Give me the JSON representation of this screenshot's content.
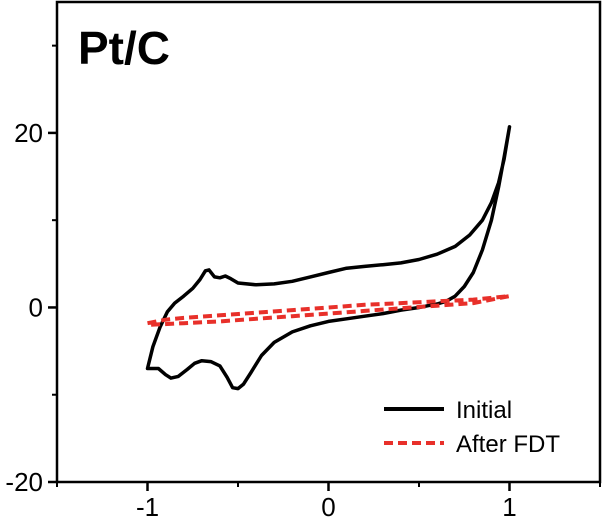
{
  "chart_data": {
    "type": "line",
    "title": "",
    "panel_label": "Pt/C",
    "xlabel": "",
    "ylabel": "",
    "xlim": [
      -1.5,
      1.5
    ],
    "ylim": [
      -20,
      35
    ],
    "xticks": [
      -1,
      0,
      1
    ],
    "xtick_labels": [
      "-1",
      "0",
      "1"
    ],
    "yticks": [
      20,
      0,
      -20
    ],
    "ytick_labels": [
      "20",
      "0",
      "-20"
    ],
    "grid": false,
    "legend_position": "bottom-right",
    "series": [
      {
        "name": "Initial",
        "color": "#000000",
        "dash": "solid",
        "points": [
          [
            -1.0,
            -7.0
          ],
          [
            -0.97,
            -4.5
          ],
          [
            -0.93,
            -2.2
          ],
          [
            -0.89,
            -0.5
          ],
          [
            -0.85,
            0.5
          ],
          [
            -0.8,
            1.3
          ],
          [
            -0.75,
            2.2
          ],
          [
            -0.71,
            3.2
          ],
          [
            -0.68,
            4.2
          ],
          [
            -0.66,
            4.3
          ],
          [
            -0.63,
            3.5
          ],
          [
            -0.6,
            3.4
          ],
          [
            -0.57,
            3.6
          ],
          [
            -0.54,
            3.3
          ],
          [
            -0.5,
            2.8
          ],
          [
            -0.4,
            2.6
          ],
          [
            -0.3,
            2.7
          ],
          [
            -0.2,
            3.0
          ],
          [
            -0.1,
            3.5
          ],
          [
            0.0,
            4.0
          ],
          [
            0.1,
            4.5
          ],
          [
            0.2,
            4.7
          ],
          [
            0.3,
            4.9
          ],
          [
            0.4,
            5.1
          ],
          [
            0.5,
            5.5
          ],
          [
            0.6,
            6.1
          ],
          [
            0.7,
            7.0
          ],
          [
            0.78,
            8.3
          ],
          [
            0.85,
            10.0
          ],
          [
            0.9,
            12.0
          ],
          [
            0.94,
            14.3
          ],
          [
            0.97,
            17.0
          ],
          [
            1.0,
            20.7
          ],
          [
            0.97,
            17.2
          ],
          [
            0.94,
            13.8
          ],
          [
            0.9,
            10.0
          ],
          [
            0.85,
            6.6
          ],
          [
            0.8,
            4.0
          ],
          [
            0.75,
            2.4
          ],
          [
            0.7,
            1.3
          ],
          [
            0.65,
            0.7
          ],
          [
            0.6,
            0.4
          ],
          [
            0.55,
            0.2
          ],
          [
            0.5,
            0.0
          ],
          [
            0.4,
            -0.3
          ],
          [
            0.3,
            -0.7
          ],
          [
            0.2,
            -1.0
          ],
          [
            0.1,
            -1.3
          ],
          [
            0.0,
            -1.6
          ],
          [
            -0.1,
            -2.1
          ],
          [
            -0.2,
            -2.8
          ],
          [
            -0.3,
            -4.0
          ],
          [
            -0.37,
            -5.5
          ],
          [
            -0.43,
            -7.5
          ],
          [
            -0.47,
            -8.8
          ],
          [
            -0.5,
            -9.3
          ],
          [
            -0.53,
            -9.2
          ],
          [
            -0.56,
            -8.0
          ],
          [
            -0.6,
            -6.7
          ],
          [
            -0.65,
            -6.2
          ],
          [
            -0.7,
            -6.1
          ],
          [
            -0.74,
            -6.4
          ],
          [
            -0.78,
            -7.1
          ],
          [
            -0.83,
            -7.9
          ],
          [
            -0.87,
            -8.1
          ],
          [
            -0.9,
            -7.7
          ],
          [
            -0.94,
            -7.0
          ],
          [
            -0.97,
            -7.0
          ],
          [
            -1.0,
            -7.0
          ]
        ]
      },
      {
        "name": "After FDT",
        "color": "#e8302a",
        "dash": "dashed",
        "points": [
          [
            -1.0,
            -1.8
          ],
          [
            -0.9,
            -1.4
          ],
          [
            -0.8,
            -1.2
          ],
          [
            -0.6,
            -0.9
          ],
          [
            -0.4,
            -0.6
          ],
          [
            -0.2,
            -0.3
          ],
          [
            0.0,
            0.0
          ],
          [
            0.2,
            0.3
          ],
          [
            0.4,
            0.5
          ],
          [
            0.6,
            0.7
          ],
          [
            0.8,
            0.9
          ],
          [
            1.0,
            1.3
          ],
          [
            0.8,
            0.5
          ],
          [
            0.6,
            0.2
          ],
          [
            0.4,
            -0.1
          ],
          [
            0.2,
            -0.4
          ],
          [
            0.0,
            -0.7
          ],
          [
            -0.2,
            -1.0
          ],
          [
            -0.4,
            -1.3
          ],
          [
            -0.6,
            -1.6
          ],
          [
            -0.8,
            -1.8
          ],
          [
            -1.0,
            -2.0
          ]
        ]
      }
    ]
  }
}
